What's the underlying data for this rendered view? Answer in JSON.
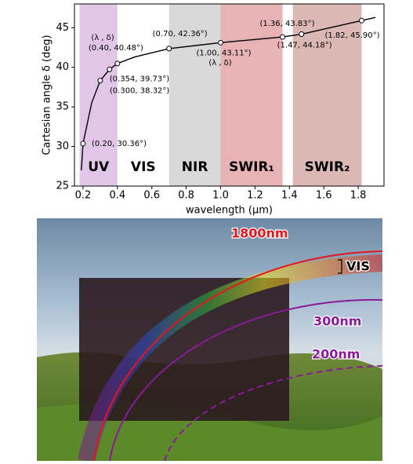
{
  "chart_data": {
    "type": "line",
    "y_label": "Cartesian angle δ (deg)",
    "x_label": "wavelength (μm)",
    "xlim": [
      0.15,
      1.95
    ],
    "ylim": [
      25,
      48
    ],
    "xticks": [
      0.2,
      0.4,
      0.6,
      0.8,
      {
        "value": 1.0,
        "label": "1.0"
      },
      1.2,
      1.4,
      1.6,
      1.8
    ],
    "yticks": [
      25,
      30,
      35,
      40,
      45
    ],
    "regions": [
      {
        "label": "UV",
        "range": [
          0.18,
          0.4
        ],
        "color": "#e2c6e8"
      },
      {
        "label": "VIS",
        "range": [
          0.4,
          0.7
        ],
        "color": "#ffffff"
      },
      {
        "label": "NIR",
        "range": [
          0.7,
          1.0
        ],
        "color": "#d9d9d9"
      },
      {
        "label": "SWIR₁",
        "range": [
          1.0,
          1.36
        ],
        "color": "#e8b3b5"
      },
      {
        "label": "SWIR₂",
        "range": [
          1.42,
          1.82
        ],
        "color": "#dbb8b4"
      }
    ],
    "series": [
      {
        "color": "#000000",
        "x": [
          0.19,
          0.2,
          0.25,
          0.3,
          0.354,
          0.4,
          0.5,
          0.7,
          1.0,
          1.36,
          1.47,
          1.82,
          1.9
        ],
        "values": [
          27,
          30.36,
          35.5,
          38.32,
          39.73,
          40.48,
          41.3,
          42.36,
          43.11,
          43.83,
          44.18,
          45.9,
          46.3
        ]
      },
      {
        "color": "#000000",
        "markers": true,
        "x": [
          0.2,
          0.3,
          0.354,
          0.4,
          0.7,
          1.0,
          1.36,
          1.47,
          1.82
        ],
        "values": [
          30.36,
          38.32,
          39.73,
          40.48,
          42.36,
          43.11,
          43.83,
          44.18,
          45.9
        ],
        "value_labels": [
          "(0.20, 30.36°)",
          "(0.300, 38.32°)",
          "(0.354, 39.73°)",
          "(0.40, 40.48°)",
          "(0.70, 42.36°)",
          "(1.00, 43.11°)",
          "(1.36, 43.83°)",
          "(1.47, 44.18°)",
          "(1.82, 45.90°)"
        ]
      }
    ],
    "annotations": [
      "(λ , δ)",
      "(λ , δ)"
    ]
  },
  "photo": {
    "labels": [
      {
        "text": "1800nm",
        "color": "#e8141b"
      },
      {
        "text": "VIS",
        "color": "#000000"
      },
      {
        "text": "300nm",
        "color": "#8a1a9a"
      },
      {
        "text": "200nm",
        "color": "#8a1a9a"
      }
    ]
  }
}
